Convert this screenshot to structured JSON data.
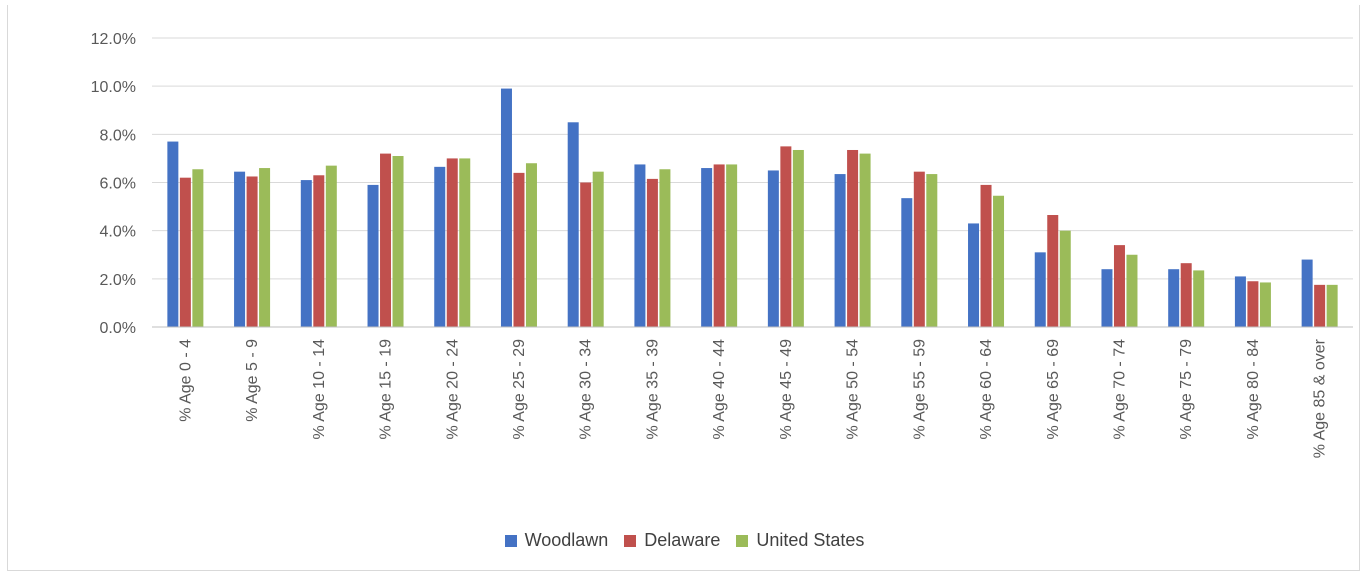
{
  "chart_data": {
    "type": "bar",
    "categories": [
      "% Age 0 - 4",
      "% Age 5 - 9",
      "% Age 10 - 14",
      "% Age 15 - 19",
      "% Age 20 - 24",
      "% Age 25 - 29",
      "% Age 30 - 34",
      "% Age 35 - 39",
      "% Age 40 - 44",
      "% Age 45 - 49",
      "% Age 50 - 54",
      "% Age 55 - 59",
      "% Age 60 - 64",
      "% Age 65 - 69",
      "% Age 70 - 74",
      "% Age 75 - 79",
      "% Age 80 - 84",
      "% Age 85 & over"
    ],
    "series": [
      {
        "name": "Woodlawn",
        "color": "#4472c4",
        "values": [
          7.7,
          6.45,
          6.1,
          5.9,
          6.65,
          9.9,
          8.5,
          6.75,
          6.6,
          6.5,
          6.35,
          5.35,
          4.3,
          3.1,
          2.4,
          2.4,
          2.1,
          2.8
        ]
      },
      {
        "name": "Delaware",
        "color": "#c0504d",
        "values": [
          6.2,
          6.25,
          6.3,
          7.2,
          7.0,
          6.4,
          6.0,
          6.15,
          6.75,
          7.5,
          7.35,
          6.45,
          5.9,
          4.65,
          3.4,
          2.65,
          1.9,
          1.75
        ]
      },
      {
        "name": "United States",
        "color": "#9bbb59",
        "values": [
          6.55,
          6.6,
          6.7,
          7.1,
          7.0,
          6.8,
          6.45,
          6.55,
          6.75,
          7.35,
          7.2,
          6.35,
          5.45,
          4.0,
          3.0,
          2.35,
          1.85,
          1.75
        ]
      }
    ],
    "yticks": [
      "0.0%",
      "2.0%",
      "4.0%",
      "6.0%",
      "8.0%",
      "10.0%",
      "12.0%"
    ],
    "ylim": [
      0,
      12
    ],
    "grid": true,
    "legend_position": "bottom"
  }
}
